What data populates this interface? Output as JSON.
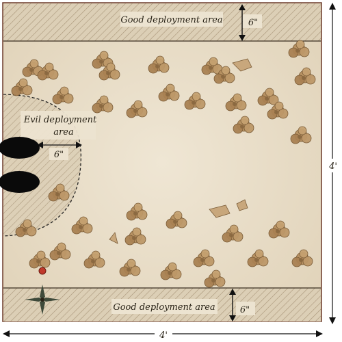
{
  "map": {
    "top_zone": {
      "label": "Good deployment area",
      "depth": "6\""
    },
    "bottom_zone": {
      "label": "Good deployment area",
      "depth": "6\""
    },
    "evil_zone": {
      "label_line1": "Evil deployment",
      "label_line2": "area",
      "radius": "6\""
    },
    "side_length": "4'",
    "bottom_length": "4'",
    "colors": {
      "parchment": "#e8dcc6",
      "zone_fill": "#d9ccb2",
      "tree": "#b08a5c",
      "tree_dark": "#8a6840",
      "border": "#6b3a2a",
      "marker": "#0a0a0a"
    },
    "icons": [
      "tree-cluster-icon",
      "boulder-icon",
      "compass-rose-icon",
      "deployment-marker-icon",
      "objective-marker-icon"
    ]
  }
}
